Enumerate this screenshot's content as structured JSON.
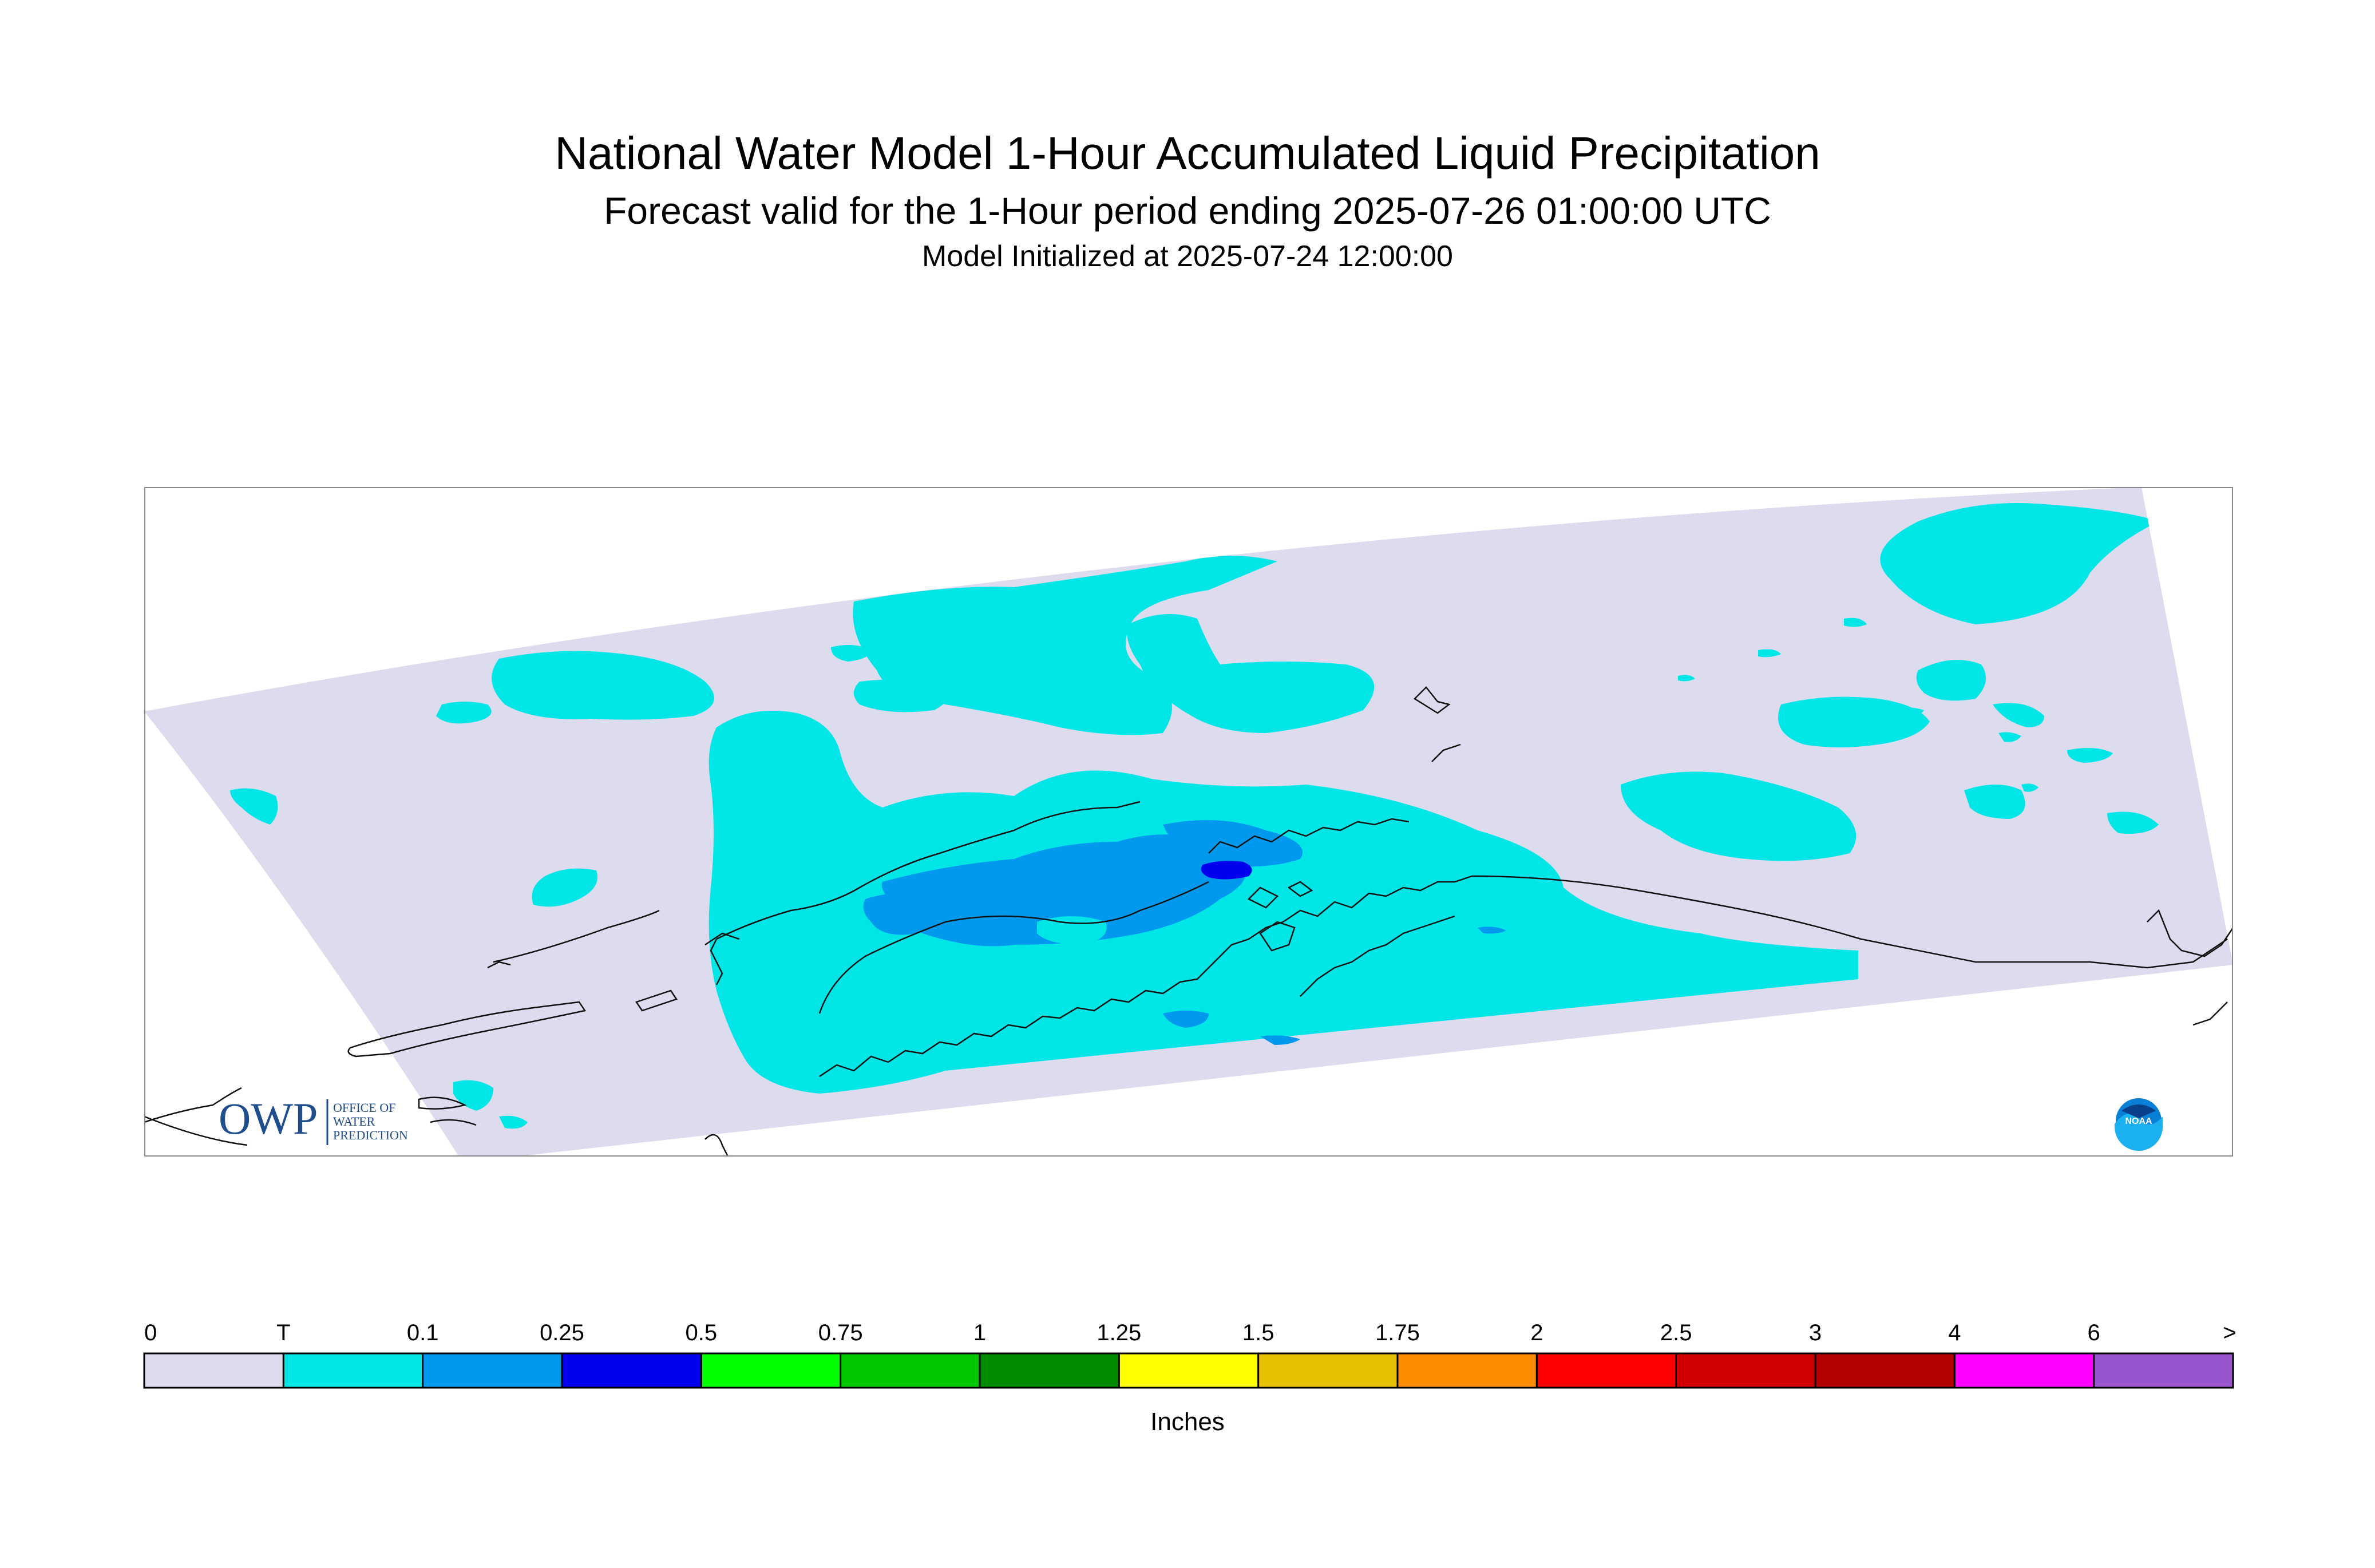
{
  "title": {
    "main": "National Water Model 1-Hour Accumulated Liquid Precipitation",
    "forecast": "Forecast valid for the 1-Hour period ending 2025-07-26 01:00:00 UTC",
    "initialized": "Model Initialized at 2025-07-24 12:00:00"
  },
  "logos": {
    "owp": {
      "mark": "OWP",
      "lines": [
        "OFFICE OF",
        "WATER",
        "PREDICTION"
      ]
    },
    "noaa": {
      "text": "NOAA"
    }
  },
  "colors": {
    "no_data": "#ffffff",
    "zero": "#dcdcee",
    "trace": "#00e6e6",
    "light": "#0099ee",
    "heavy": "#0000ee",
    "coast": "#111111",
    "frame": "#888888"
  },
  "legend": {
    "unit_label": "Inches",
    "tick_labels": [
      "0",
      "T",
      "0.1",
      "0.25",
      "0.5",
      "0.75",
      "1",
      "1.25",
      "1.5",
      "1.75",
      "2",
      "2.5",
      "3",
      "4",
      "6",
      ">"
    ],
    "bins": [
      {
        "from": "0",
        "to": "T",
        "color": "#dcdcee"
      },
      {
        "from": "T",
        "to": "0.1",
        "color": "#00e6e6"
      },
      {
        "from": "0.1",
        "to": "0.25",
        "color": "#0099ee"
      },
      {
        "from": "0.25",
        "to": "0.5",
        "color": "#0000ee"
      },
      {
        "from": "0.5",
        "to": "0.75",
        "color": "#00ff00"
      },
      {
        "from": "0.75",
        "to": "1",
        "color": "#00c800"
      },
      {
        "from": "1",
        "to": "1.25",
        "color": "#008c00"
      },
      {
        "from": "1.25",
        "to": "1.5",
        "color": "#ffff00"
      },
      {
        "from": "1.5",
        "to": "1.75",
        "color": "#e6c000"
      },
      {
        "from": "1.75",
        "to": "2",
        "color": "#ff8c00"
      },
      {
        "from": "2",
        "to": "2.5",
        "color": "#ff0000"
      },
      {
        "from": "2.5",
        "to": "3",
        "color": "#d20000"
      },
      {
        "from": "3",
        "to": "4",
        "color": "#b40000"
      },
      {
        "from": "4",
        "to": "6",
        "color": "#ff00ff"
      },
      {
        "from": "6",
        "to": ">",
        "color": "#9955cc"
      }
    ]
  }
}
